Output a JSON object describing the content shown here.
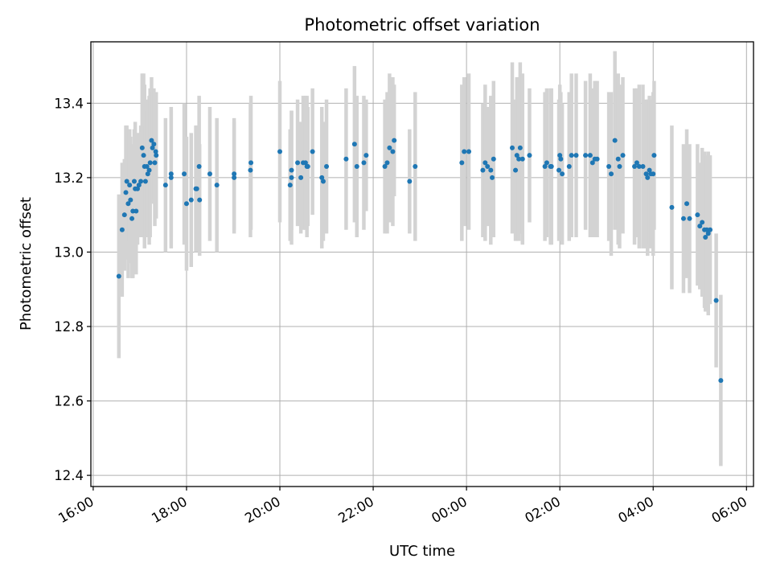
{
  "chart_data": {
    "type": "scatter",
    "title": "Photometric offset variation",
    "xlabel": "UTC time",
    "ylabel": "Photometric offset",
    "xlim": [
      -8.05,
      6.15
    ],
    "ylim": [
      12.37,
      13.565
    ],
    "grid": true,
    "x_unit": "hours relative to 00:00 UTC",
    "xticks": [
      {
        "value": -8,
        "label": "16:00"
      },
      {
        "value": -6,
        "label": "18:00"
      },
      {
        "value": -4,
        "label": "20:00"
      },
      {
        "value": -2,
        "label": "22:00"
      },
      {
        "value": 0,
        "label": "00:00"
      },
      {
        "value": 2,
        "label": "02:00"
      },
      {
        "value": 4,
        "label": "04:00"
      },
      {
        "value": 6,
        "label": "06:00"
      }
    ],
    "yticks": [
      {
        "value": 12.4,
        "label": "12.4"
      },
      {
        "value": 12.6,
        "label": "12.6"
      },
      {
        "value": 12.8,
        "label": "12.8"
      },
      {
        "value": 13.0,
        "label": "13.0"
      },
      {
        "value": 13.2,
        "label": "13.2"
      },
      {
        "value": 13.4,
        "label": "13.4"
      }
    ],
    "colors": {
      "points": "#1f77b4",
      "errorbars": "#d3d3d3",
      "grid": "#b0b0b0"
    },
    "series": [
      {
        "points": [
          [
            -7.45,
            12.935,
            0.22
          ],
          [
            -7.38,
            13.06,
            0.18
          ],
          [
            -7.33,
            13.1,
            0.15
          ],
          [
            -7.3,
            13.16,
            0.18
          ],
          [
            -7.28,
            13.19,
            0.15
          ],
          [
            -7.25,
            13.13,
            0.2
          ],
          [
            -7.22,
            13.18,
            0.15
          ],
          [
            -7.2,
            13.14,
            0.17
          ],
          [
            -7.17,
            13.09,
            0.16
          ],
          [
            -7.15,
            13.11,
            0.18
          ],
          [
            -7.12,
            13.19,
            0.14
          ],
          [
            -7.1,
            13.17,
            0.18
          ],
          [
            -7.08,
            13.11,
            0.17
          ],
          [
            -7.05,
            13.17,
            0.15
          ],
          [
            -7.02,
            13.18,
            0.14
          ],
          [
            -6.98,
            13.19,
            0.15
          ],
          [
            -6.95,
            13.28,
            0.2
          ],
          [
            -6.92,
            13.26,
            0.22
          ],
          [
            -6.9,
            13.23,
            0.22
          ],
          [
            -6.88,
            13.19,
            0.15
          ],
          [
            -6.85,
            13.23,
            0.18
          ],
          [
            -6.83,
            13.21,
            0.17
          ],
          [
            -6.8,
            13.22,
            0.2
          ],
          [
            -6.78,
            13.24,
            0.2
          ],
          [
            -6.75,
            13.3,
            0.17
          ],
          [
            -6.73,
            13.28,
            0.15
          ],
          [
            -6.7,
            13.29,
            0.15
          ],
          [
            -6.68,
            13.24,
            0.17
          ],
          [
            -6.66,
            13.27,
            0.15
          ],
          [
            -6.65,
            13.26,
            0.17
          ],
          [
            -6.45,
            13.18,
            0.18
          ],
          [
            -6.33,
            13.21,
            0.17
          ],
          [
            -6.33,
            13.2,
            0.19
          ],
          [
            -6.05,
            13.21,
            0.19
          ],
          [
            -6.0,
            13.13,
            0.18
          ],
          [
            -5.9,
            13.14,
            0.18
          ],
          [
            -5.8,
            13.17,
            0.17
          ],
          [
            -5.78,
            13.17,
            0.17
          ],
          [
            -5.73,
            13.23,
            0.19
          ],
          [
            -5.72,
            13.14,
            0.15
          ],
          [
            -5.5,
            13.21,
            0.18
          ],
          [
            -5.35,
            13.18,
            0.18
          ],
          [
            -4.98,
            13.2,
            0.15
          ],
          [
            -4.98,
            13.21,
            0.15
          ],
          [
            -4.63,
            13.22,
            0.18
          ],
          [
            -4.62,
            13.24,
            0.18
          ],
          [
            -4.0,
            13.27,
            0.19
          ],
          [
            -3.78,
            13.18,
            0.15
          ],
          [
            -3.75,
            13.22,
            0.16
          ],
          [
            -3.75,
            13.2,
            0.18
          ],
          [
            -3.62,
            13.24,
            0.17
          ],
          [
            -3.55,
            13.2,
            0.15
          ],
          [
            -3.5,
            13.24,
            0.18
          ],
          [
            -3.45,
            13.24,
            0.18
          ],
          [
            -3.42,
            13.23,
            0.19
          ],
          [
            -3.4,
            13.23,
            0.16
          ],
          [
            -3.3,
            13.27,
            0.17
          ],
          [
            -3.1,
            13.2,
            0.19
          ],
          [
            -3.07,
            13.19,
            0.16
          ],
          [
            -3.0,
            13.23,
            0.18
          ],
          [
            -2.58,
            13.25,
            0.19
          ],
          [
            -2.4,
            13.29,
            0.21
          ],
          [
            -2.35,
            13.23,
            0.19
          ],
          [
            -2.2,
            13.24,
            0.18
          ],
          [
            -2.15,
            13.26,
            0.15
          ],
          [
            -1.75,
            13.23,
            0.18
          ],
          [
            -1.7,
            13.24,
            0.19
          ],
          [
            -1.65,
            13.28,
            0.2
          ],
          [
            -1.58,
            13.27,
            0.2
          ],
          [
            -1.55,
            13.3,
            0.15
          ],
          [
            -1.22,
            13.19,
            0.14
          ],
          [
            -1.1,
            13.23,
            0.2
          ],
          [
            -0.1,
            13.24,
            0.21
          ],
          [
            -0.05,
            13.27,
            0.2
          ],
          [
            0.05,
            13.27,
            0.21
          ],
          [
            0.35,
            13.22,
            0.18
          ],
          [
            0.4,
            13.24,
            0.21
          ],
          [
            0.45,
            13.23,
            0.16
          ],
          [
            0.52,
            13.22,
            0.2
          ],
          [
            0.55,
            13.2,
            0.16
          ],
          [
            0.58,
            13.25,
            0.21
          ],
          [
            0.98,
            13.28,
            0.23
          ],
          [
            1.05,
            13.22,
            0.19
          ],
          [
            1.08,
            13.26,
            0.21
          ],
          [
            1.12,
            13.25,
            0.22
          ],
          [
            1.15,
            13.28,
            0.23
          ],
          [
            1.2,
            13.25,
            0.23
          ],
          [
            1.35,
            13.26,
            0.18
          ],
          [
            1.68,
            13.23,
            0.2
          ],
          [
            1.72,
            13.24,
            0.2
          ],
          [
            1.8,
            13.23,
            0.21
          ],
          [
            1.82,
            13.23,
            0.21
          ],
          [
            1.98,
            13.22,
            0.19
          ],
          [
            2.0,
            13.26,
            0.19
          ],
          [
            2.02,
            13.25,
            0.18
          ],
          [
            2.05,
            13.21,
            0.19
          ],
          [
            2.2,
            13.23,
            0.2
          ],
          [
            2.25,
            13.26,
            0.22
          ],
          [
            2.35,
            13.26,
            0.22
          ],
          [
            2.55,
            13.26,
            0.2
          ],
          [
            2.65,
            13.26,
            0.22
          ],
          [
            2.7,
            13.24,
            0.2
          ],
          [
            2.75,
            13.25,
            0.21
          ],
          [
            2.8,
            13.25,
            0.21
          ],
          [
            3.05,
            13.23,
            0.2
          ],
          [
            3.1,
            13.21,
            0.22
          ],
          [
            3.18,
            13.3,
            0.24
          ],
          [
            3.25,
            13.25,
            0.23
          ],
          [
            3.28,
            13.23,
            0.22
          ],
          [
            3.35,
            13.26,
            0.21
          ],
          [
            3.6,
            13.23,
            0.21
          ],
          [
            3.65,
            13.24,
            0.2
          ],
          [
            3.7,
            13.23,
            0.22
          ],
          [
            3.78,
            13.23,
            0.22
          ],
          [
            3.85,
            13.21,
            0.2
          ],
          [
            3.88,
            13.2,
            0.21
          ],
          [
            3.92,
            13.22,
            0.2
          ],
          [
            3.95,
            13.21,
            0.2
          ],
          [
            4.0,
            13.21,
            0.22
          ],
          [
            4.02,
            13.26,
            0.2
          ],
          [
            4.4,
            13.12,
            0.22
          ],
          [
            4.65,
            13.09,
            0.2
          ],
          [
            4.72,
            13.13,
            0.2
          ],
          [
            4.78,
            13.09,
            0.2
          ],
          [
            4.95,
            13.1,
            0.19
          ],
          [
            5.0,
            13.07,
            0.17
          ],
          [
            5.05,
            13.08,
            0.2
          ],
          [
            5.1,
            13.06,
            0.21
          ],
          [
            5.12,
            13.04,
            0.2
          ],
          [
            5.15,
            13.06,
            0.2
          ],
          [
            5.18,
            13.05,
            0.22
          ],
          [
            5.22,
            13.06,
            0.2
          ],
          [
            5.35,
            12.87,
            0.18
          ],
          [
            5.45,
            12.655,
            0.23
          ]
        ]
      }
    ]
  }
}
